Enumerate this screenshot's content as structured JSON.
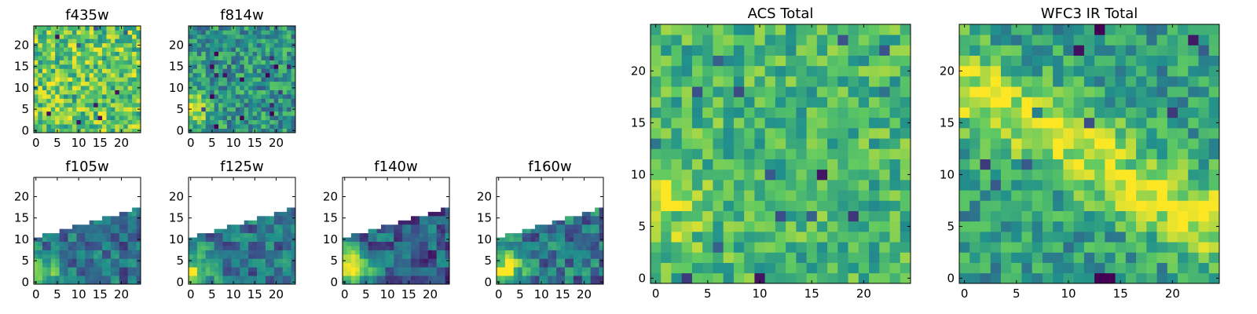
{
  "figure": {
    "colormap": "viridis",
    "colormap_stops": [
      "#440154",
      "#3b528b",
      "#21918c",
      "#5ec962",
      "#fde725"
    ],
    "masked_color": "#ffffff"
  },
  "chart_data": [
    {
      "type": "heatmap",
      "title": "f435w",
      "xlabel": "",
      "ylabel": "",
      "grid_size": [
        25,
        25
      ],
      "xlim": [
        -0.5,
        24.5
      ],
      "ylim": [
        -0.5,
        24.5
      ],
      "xticks": [
        0,
        5,
        10,
        15,
        20
      ],
      "yticks": [
        0,
        5,
        10,
        15,
        20
      ],
      "xtick_labels": [
        "0",
        "5",
        "10",
        "15",
        "20"
      ],
      "ytick_labels": [
        "0",
        "5",
        "10",
        "15",
        "20"
      ],
      "pattern": "noise",
      "noise_seed": 11,
      "base": 0.74,
      "noise_amp": 0.26,
      "features": [],
      "mask": null
    },
    {
      "type": "heatmap",
      "title": "f814w",
      "xlabel": "",
      "ylabel": "",
      "grid_size": [
        25,
        25
      ],
      "xlim": [
        -0.5,
        24.5
      ],
      "ylim": [
        -0.5,
        24.5
      ],
      "xticks": [
        0,
        5,
        10,
        15,
        20
      ],
      "yticks": [
        0,
        5,
        10,
        15,
        20
      ],
      "xtick_labels": [
        "0",
        "5",
        "10",
        "15",
        "20"
      ],
      "ytick_labels": [
        "0",
        "5",
        "10",
        "15",
        "20"
      ],
      "pattern": "noise",
      "noise_seed": 23,
      "base": 0.52,
      "noise_amp": 0.24,
      "features": [
        {
          "kind": "blob",
          "x": 0,
          "y": 5,
          "sigma": 3.0,
          "amp": 0.45
        }
      ],
      "mask": null
    },
    {
      "type": "heatmap",
      "title": "f105w",
      "xlabel": "",
      "ylabel": "",
      "grid_size": [
        25,
        25
      ],
      "xlim": [
        -0.5,
        24.5
      ],
      "ylim": [
        -0.5,
        24.5
      ],
      "xticks": [
        0,
        5,
        10,
        15,
        20
      ],
      "yticks": [
        0,
        5,
        10,
        15,
        20
      ],
      "xtick_labels": [
        "0",
        "5",
        "10",
        "15",
        "20"
      ],
      "ytick_labels": [
        "0",
        "5",
        "10",
        "15",
        "20"
      ],
      "pattern": "blocks",
      "noise_seed": 37,
      "base": 0.36,
      "noise_amp": 0.2,
      "block": 2,
      "features": [
        {
          "kind": "blob",
          "x": 0,
          "y": 2,
          "sigma": 3.5,
          "amp": 0.55
        }
      ],
      "mask": {
        "below_line_from": [
          0,
          10.5
        ],
        "below_line_to": [
          24.5,
          17.5
        ]
      }
    },
    {
      "type": "heatmap",
      "title": "f125w",
      "xlabel": "",
      "ylabel": "",
      "grid_size": [
        25,
        25
      ],
      "xlim": [
        -0.5,
        24.5
      ],
      "ylim": [
        -0.5,
        24.5
      ],
      "xticks": [
        0,
        5,
        10,
        15,
        20
      ],
      "yticks": [
        0,
        5,
        10,
        15,
        20
      ],
      "xtick_labels": [
        "0",
        "5",
        "10",
        "15",
        "20"
      ],
      "ytick_labels": [
        "0",
        "5",
        "10",
        "15",
        "20"
      ],
      "pattern": "blocks",
      "noise_seed": 41,
      "base": 0.38,
      "noise_amp": 0.2,
      "block": 2,
      "features": [
        {
          "kind": "blob",
          "x": 0,
          "y": 2,
          "sigma": 3.5,
          "amp": 0.55
        }
      ],
      "mask": {
        "below_line_from": [
          0,
          10.5
        ],
        "below_line_to": [
          24.5,
          17.5
        ]
      }
    },
    {
      "type": "heatmap",
      "title": "f140w",
      "xlabel": "",
      "ylabel": "",
      "grid_size": [
        25,
        25
      ],
      "xlim": [
        -0.5,
        24.5
      ],
      "ylim": [
        -0.5,
        24.5
      ],
      "xticks": [
        0,
        5,
        10,
        15,
        20
      ],
      "yticks": [
        0,
        5,
        10,
        15,
        20
      ],
      "xtick_labels": [
        "0",
        "5",
        "10",
        "15",
        "20"
      ],
      "ytick_labels": [
        "0",
        "5",
        "10",
        "15",
        "20"
      ],
      "pattern": "blocks",
      "noise_seed": 53,
      "base": 0.3,
      "noise_amp": 0.22,
      "block": 2,
      "features": [
        {
          "kind": "blob",
          "x": 1,
          "y": 3,
          "sigma": 3.5,
          "amp": 0.6
        }
      ],
      "mask": {
        "below_line_from": [
          0,
          10.5
        ],
        "below_line_to": [
          24.5,
          17.5
        ]
      }
    },
    {
      "type": "heatmap",
      "title": "f160w",
      "xlabel": "",
      "ylabel": "",
      "grid_size": [
        25,
        25
      ],
      "xlim": [
        -0.5,
        24.5
      ],
      "ylim": [
        -0.5,
        24.5
      ],
      "xticks": [
        0,
        5,
        10,
        15,
        20
      ],
      "yticks": [
        0,
        5,
        10,
        15,
        20
      ],
      "xtick_labels": [
        "0",
        "5",
        "10",
        "15",
        "20"
      ],
      "ytick_labels": [
        "0",
        "5",
        "10",
        "15",
        "20"
      ],
      "pattern": "blocks",
      "noise_seed": 67,
      "base": 0.4,
      "noise_amp": 0.22,
      "block": 2,
      "features": [
        {
          "kind": "blob",
          "x": 1,
          "y": 3,
          "sigma": 3.2,
          "amp": 0.55
        }
      ],
      "mask": {
        "below_line_from": [
          0,
          10.5
        ],
        "below_line_to": [
          24.5,
          17.5
        ]
      }
    },
    {
      "type": "heatmap",
      "title": "ACS Total",
      "xlabel": "",
      "ylabel": "",
      "grid_size": [
        25,
        25
      ],
      "xlim": [
        -0.5,
        24.5
      ],
      "ylim": [
        -0.5,
        24.5
      ],
      "xticks": [
        0,
        5,
        10,
        15,
        20
      ],
      "yticks": [
        0,
        5,
        10,
        15,
        20
      ],
      "xtick_labels": [
        "0",
        "5",
        "10",
        "15",
        "20"
      ],
      "ytick_labels": [
        "0",
        "5",
        "10",
        "15",
        "20"
      ],
      "pattern": "noise",
      "noise_seed": 79,
      "base": 0.66,
      "noise_amp": 0.2,
      "features": [
        {
          "kind": "blob",
          "x": 0,
          "y": 7,
          "sigma": 3.0,
          "amp": 0.3
        }
      ],
      "mask": null
    },
    {
      "type": "heatmap",
      "title": "WFC3 IR Total",
      "xlabel": "",
      "ylabel": "",
      "grid_size": [
        25,
        25
      ],
      "xlim": [
        -0.5,
        24.5
      ],
      "ylim": [
        -0.5,
        24.5
      ],
      "xticks": [
        0,
        5,
        10,
        15,
        20
      ],
      "yticks": [
        0,
        5,
        10,
        15,
        20
      ],
      "xtick_labels": [
        "0",
        "5",
        "10",
        "15",
        "20"
      ],
      "ytick_labels": [
        "0",
        "5",
        "10",
        "15",
        "20"
      ],
      "pattern": "noise",
      "noise_seed": 97,
      "base": 0.55,
      "noise_amp": 0.2,
      "features": [
        {
          "kind": "ridge",
          "from": [
            1,
            18
          ],
          "to": [
            24,
            5
          ],
          "width": 2.6,
          "amp": 0.38
        }
      ],
      "mask": null
    }
  ]
}
